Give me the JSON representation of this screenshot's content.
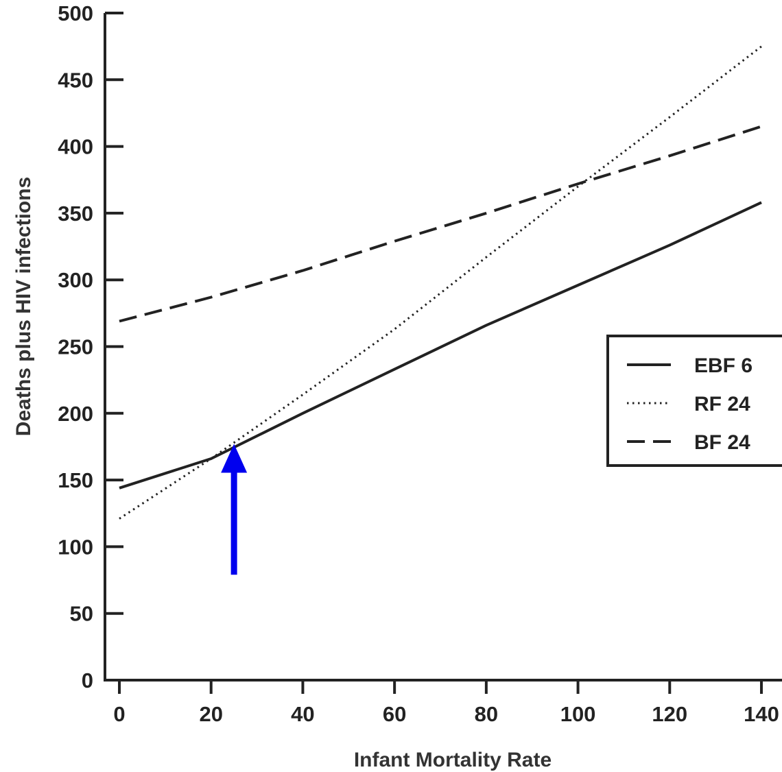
{
  "chart_data": {
    "type": "line",
    "title": "",
    "xlabel": "Infant Mortality Rate",
    "ylabel": "Deaths plus HIV infections",
    "xlim": [
      0,
      140
    ],
    "ylim": [
      0,
      500
    ],
    "x_ticks": [
      0,
      20,
      40,
      60,
      80,
      100,
      120,
      140
    ],
    "y_ticks": [
      0,
      50,
      100,
      150,
      200,
      250,
      300,
      350,
      400,
      450,
      500
    ],
    "x_tick_labels": [
      "0",
      "20",
      "40",
      "60",
      "80",
      "100",
      "120",
      "140"
    ],
    "y_tick_labels": [
      "0",
      "50",
      "100",
      "150",
      "200",
      "250",
      "300",
      "350",
      "400",
      "450",
      "500"
    ],
    "grid": false,
    "legend_position": "right",
    "series": [
      {
        "name": "EBF 6",
        "style": "solid",
        "color": "#222222",
        "x": [
          0,
          20,
          40,
          60,
          80,
          100,
          120,
          140
        ],
        "y": [
          144,
          166,
          200,
          233,
          266,
          296,
          326,
          358
        ]
      },
      {
        "name": "RF 24",
        "style": "dotted",
        "color": "#222222",
        "x": [
          0,
          20,
          40,
          60,
          80,
          100,
          120,
          140
        ],
        "y": [
          121,
          166,
          214,
          263,
          317,
          370,
          422,
          475
        ]
      },
      {
        "name": "BF 24",
        "style": "dashed",
        "color": "#222222",
        "x": [
          0,
          20,
          40,
          60,
          80,
          100,
          120,
          140
        ],
        "y": [
          269,
          287,
          307,
          329,
          350,
          372,
          393,
          415
        ]
      }
    ],
    "annotations": [
      {
        "type": "arrow",
        "color": "#0000ee",
        "x": 25,
        "y_from": 79,
        "y_to": 177
      }
    ]
  }
}
